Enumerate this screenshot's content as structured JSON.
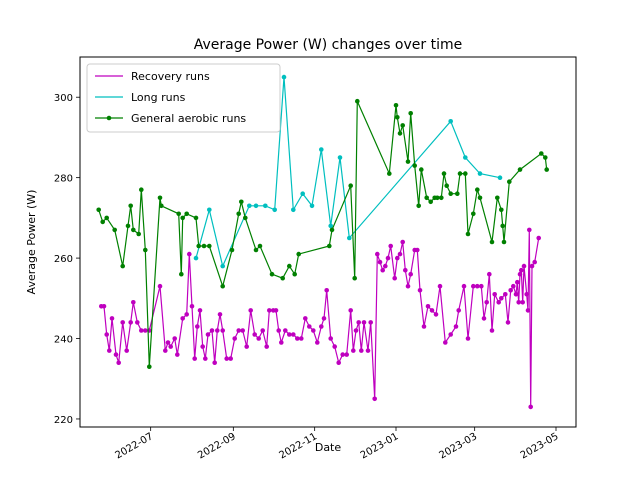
{
  "chart_data": {
    "type": "line",
    "title": "Average Power (W) changes over time",
    "xlabel": "Date",
    "ylabel": "Average Power (W)",
    "xlim": [
      "2022-05-09",
      "2023-05-16"
    ],
    "ylim": [
      218,
      310
    ],
    "x_ticks": [
      "2022-07-01",
      "2022-09-01",
      "2022-11-01",
      "2023-01-01",
      "2023-03-01",
      "2023-05-01"
    ],
    "x_tick_labels": [
      "2022-07",
      "2022-09",
      "2022-11",
      "2023-01",
      "2023-03",
      "2023-05"
    ],
    "y_ticks": [
      220,
      240,
      260,
      280,
      300
    ],
    "legend_position": "top-left",
    "grid": false,
    "series": [
      {
        "name": "Recovery runs",
        "color": "#bf00bf",
        "marker": "circle",
        "points": [
          [
            "2022-05-25",
            248
          ],
          [
            "2022-05-27",
            248
          ],
          [
            "2022-05-29",
            241
          ],
          [
            "2022-05-31",
            237
          ],
          [
            "2022-06-02",
            245
          ],
          [
            "2022-06-05",
            236
          ],
          [
            "2022-06-07",
            234
          ],
          [
            "2022-06-10",
            244
          ],
          [
            "2022-06-13",
            237
          ],
          [
            "2022-06-16",
            244
          ],
          [
            "2022-06-18",
            249
          ],
          [
            "2022-06-21",
            244
          ],
          [
            "2022-06-24",
            242
          ],
          [
            "2022-06-27",
            242
          ],
          [
            "2022-06-30",
            242
          ],
          [
            "2022-07-08",
            253
          ],
          [
            "2022-07-12",
            237
          ],
          [
            "2022-07-14",
            239
          ],
          [
            "2022-07-16",
            238
          ],
          [
            "2022-07-19",
            240
          ],
          [
            "2022-07-21",
            236
          ],
          [
            "2022-07-25",
            245
          ],
          [
            "2022-07-28",
            246
          ],
          [
            "2022-07-30",
            261
          ],
          [
            "2022-08-01",
            248
          ],
          [
            "2022-08-03",
            235
          ],
          [
            "2022-08-05",
            243
          ],
          [
            "2022-08-07",
            247
          ],
          [
            "2022-08-09",
            238
          ],
          [
            "2022-08-11",
            235
          ],
          [
            "2022-08-13",
            241
          ],
          [
            "2022-08-16",
            242
          ],
          [
            "2022-08-18",
            234
          ],
          [
            "2022-08-20",
            242
          ],
          [
            "2022-08-22",
            246
          ],
          [
            "2022-08-24",
            242
          ],
          [
            "2022-08-27",
            235
          ],
          [
            "2022-08-30",
            235
          ],
          [
            "2022-09-02",
            240
          ],
          [
            "2022-09-05",
            242
          ],
          [
            "2022-09-08",
            242
          ],
          [
            "2022-09-11",
            238
          ],
          [
            "2022-09-14",
            247
          ],
          [
            "2022-09-17",
            241
          ],
          [
            "2022-09-20",
            240
          ],
          [
            "2022-09-23",
            242
          ],
          [
            "2022-09-26",
            238
          ],
          [
            "2022-09-28",
            247
          ],
          [
            "2022-10-01",
            247
          ],
          [
            "2022-10-03",
            247
          ],
          [
            "2022-10-05",
            242
          ],
          [
            "2022-10-07",
            239
          ],
          [
            "2022-10-10",
            242
          ],
          [
            "2022-10-13",
            241
          ],
          [
            "2022-10-16",
            241
          ],
          [
            "2022-10-19",
            240
          ],
          [
            "2022-10-22",
            240
          ],
          [
            "2022-10-25",
            245
          ],
          [
            "2022-10-28",
            243
          ],
          [
            "2022-10-31",
            242
          ],
          [
            "2022-11-03",
            239
          ],
          [
            "2022-11-06",
            243
          ],
          [
            "2022-11-08",
            245
          ],
          [
            "2022-11-10",
            252
          ],
          [
            "2022-11-13",
            240
          ],
          [
            "2022-11-16",
            238
          ],
          [
            "2022-11-19",
            234
          ],
          [
            "2022-11-22",
            236
          ],
          [
            "2022-11-25",
            236
          ],
          [
            "2022-11-28",
            247
          ],
          [
            "2022-11-30",
            237
          ],
          [
            "2022-12-02",
            242
          ],
          [
            "2022-12-04",
            244
          ],
          [
            "2022-12-06",
            237
          ],
          [
            "2022-12-08",
            244
          ],
          [
            "2022-12-11",
            237
          ],
          [
            "2022-12-13",
            244
          ],
          [
            "2022-12-16",
            225
          ],
          [
            "2022-12-18",
            261
          ],
          [
            "2022-12-20",
            259
          ],
          [
            "2022-12-22",
            257
          ],
          [
            "2022-12-24",
            258
          ],
          [
            "2022-12-26",
            260
          ],
          [
            "2022-12-28",
            263
          ],
          [
            "2022-12-31",
            255
          ],
          [
            "2023-01-02",
            260
          ],
          [
            "2023-01-04",
            261
          ],
          [
            "2023-01-06",
            264
          ],
          [
            "2023-01-08",
            257
          ],
          [
            "2023-01-10",
            253
          ],
          [
            "2023-01-12",
            256
          ],
          [
            "2023-01-15",
            262
          ],
          [
            "2023-01-17",
            262
          ],
          [
            "2023-01-19",
            252
          ],
          [
            "2023-01-22",
            243
          ],
          [
            "2023-01-25",
            248
          ],
          [
            "2023-01-28",
            247
          ],
          [
            "2023-01-31",
            246
          ],
          [
            "2023-02-03",
            253
          ],
          [
            "2023-02-07",
            239
          ],
          [
            "2023-02-11",
            241
          ],
          [
            "2023-02-15",
            243
          ],
          [
            "2023-02-17",
            247
          ],
          [
            "2023-02-21",
            253
          ],
          [
            "2023-02-24",
            240
          ],
          [
            "2023-02-28",
            253
          ],
          [
            "2023-03-03",
            253
          ],
          [
            "2023-03-06",
            253
          ],
          [
            "2023-03-08",
            245
          ],
          [
            "2023-03-10",
            249
          ],
          [
            "2023-03-12",
            256
          ],
          [
            "2023-03-14",
            242
          ],
          [
            "2023-03-16",
            251
          ],
          [
            "2023-03-19",
            249
          ],
          [
            "2023-03-21",
            250
          ],
          [
            "2023-03-24",
            251
          ],
          [
            "2023-03-26",
            244
          ],
          [
            "2023-03-28",
            252
          ],
          [
            "2023-03-30",
            253
          ],
          [
            "2023-04-01",
            251
          ],
          [
            "2023-04-02",
            254
          ],
          [
            "2023-04-03",
            249
          ],
          [
            "2023-04-04",
            256
          ],
          [
            "2023-04-05",
            257
          ],
          [
            "2023-04-06",
            249
          ],
          [
            "2023-04-07",
            258
          ],
          [
            "2023-04-09",
            251
          ],
          [
            "2023-04-10",
            247
          ],
          [
            "2023-04-11",
            267
          ],
          [
            "2023-04-12",
            223
          ],
          [
            "2023-04-13",
            258
          ],
          [
            "2023-04-15",
            259
          ],
          [
            "2023-04-18",
            265
          ]
        ]
      },
      {
        "name": "Long runs",
        "color": "#00bfbf",
        "marker": "circle",
        "points": [
          [
            "2022-08-04",
            260
          ],
          [
            "2022-08-14",
            272
          ],
          [
            "2022-08-24",
            258
          ],
          [
            "2022-09-13",
            273
          ],
          [
            "2022-09-18",
            273
          ],
          [
            "2022-09-25",
            273
          ],
          [
            "2022-10-02",
            272
          ],
          [
            "2022-10-09",
            305
          ],
          [
            "2022-10-16",
            272
          ],
          [
            "2022-10-23",
            276
          ],
          [
            "2022-10-30",
            273
          ],
          [
            "2022-11-06",
            287
          ],
          [
            "2022-11-13",
            268
          ],
          [
            "2022-11-20",
            285
          ],
          [
            "2022-11-27",
            265
          ],
          [
            "2023-02-11",
            294
          ],
          [
            "2023-02-22",
            285
          ],
          [
            "2023-03-05",
            281
          ],
          [
            "2023-03-20",
            280
          ]
        ]
      },
      {
        "name": "General aerobic runs",
        "color": "#008000",
        "marker": "circle",
        "points": [
          [
            "2022-05-23",
            272
          ],
          [
            "2022-05-26",
            269
          ],
          [
            "2022-05-29",
            270
          ],
          [
            "2022-06-04",
            267
          ],
          [
            "2022-06-10",
            258
          ],
          [
            "2022-06-14",
            268
          ],
          [
            "2022-06-16",
            273
          ],
          [
            "2022-06-18",
            267
          ],
          [
            "2022-06-22",
            266
          ],
          [
            "2022-06-24",
            277
          ],
          [
            "2022-06-27",
            262
          ],
          [
            "2022-06-30",
            233
          ],
          [
            "2022-07-08",
            275
          ],
          [
            "2022-07-09",
            273
          ],
          [
            "2022-07-22",
            271
          ],
          [
            "2022-07-24",
            256
          ],
          [
            "2022-07-25",
            270
          ],
          [
            "2022-07-28",
            271
          ],
          [
            "2022-08-04",
            270
          ],
          [
            "2022-08-06",
            263
          ],
          [
            "2022-08-10",
            263
          ],
          [
            "2022-08-14",
            263
          ],
          [
            "2022-08-24",
            253
          ],
          [
            "2022-08-31",
            262
          ],
          [
            "2022-09-05",
            271
          ],
          [
            "2022-09-07",
            274
          ],
          [
            "2022-09-10",
            270
          ],
          [
            "2022-09-18",
            262
          ],
          [
            "2022-09-21",
            263
          ],
          [
            "2022-09-30",
            256
          ],
          [
            "2022-10-08",
            255
          ],
          [
            "2022-10-13",
            258
          ],
          [
            "2022-10-17",
            256
          ],
          [
            "2022-10-20",
            261
          ],
          [
            "2022-11-12",
            263
          ],
          [
            "2022-11-14",
            267
          ],
          [
            "2022-11-28",
            278
          ],
          [
            "2022-12-01",
            255
          ],
          [
            "2022-12-03",
            299
          ],
          [
            "2022-12-27",
            281
          ],
          [
            "2023-01-01",
            298
          ],
          [
            "2023-01-02",
            295
          ],
          [
            "2023-01-04",
            291
          ],
          [
            "2023-01-06",
            293
          ],
          [
            "2023-01-10",
            284
          ],
          [
            "2023-01-12",
            296
          ],
          [
            "2023-01-15",
            283
          ],
          [
            "2023-01-18",
            273
          ],
          [
            "2023-01-20",
            282
          ],
          [
            "2023-01-24",
            275
          ],
          [
            "2023-01-27",
            274
          ],
          [
            "2023-01-30",
            275
          ],
          [
            "2023-02-01",
            275
          ],
          [
            "2023-02-04",
            275
          ],
          [
            "2023-02-06",
            281
          ],
          [
            "2023-02-08",
            278
          ],
          [
            "2023-02-11",
            276
          ],
          [
            "2023-02-16",
            276
          ],
          [
            "2023-02-18",
            281
          ],
          [
            "2023-02-22",
            281
          ],
          [
            "2023-02-24",
            266
          ],
          [
            "2023-02-28",
            271
          ],
          [
            "2023-03-03",
            277
          ],
          [
            "2023-03-05",
            275
          ],
          [
            "2023-03-14",
            264
          ],
          [
            "2023-03-18",
            275
          ],
          [
            "2023-03-21",
            272
          ],
          [
            "2023-03-22",
            268
          ],
          [
            "2023-03-23",
            264
          ],
          [
            "2023-03-27",
            279
          ],
          [
            "2023-04-04",
            282
          ],
          [
            "2023-04-20",
            286
          ],
          [
            "2023-04-23",
            285
          ],
          [
            "2023-04-24",
            282
          ]
        ]
      }
    ]
  }
}
